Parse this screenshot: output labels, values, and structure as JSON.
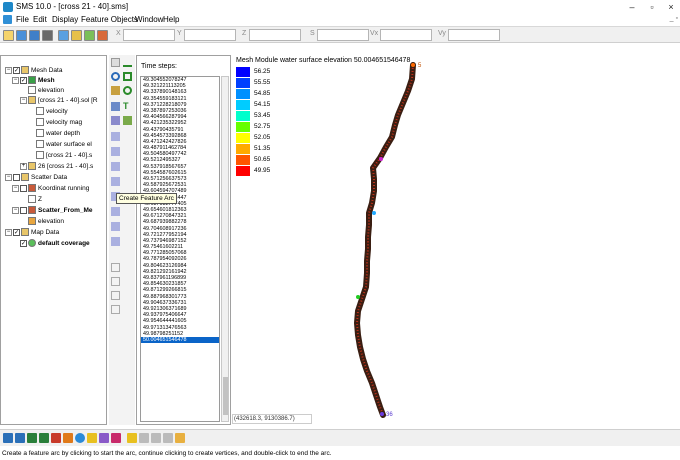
{
  "window": {
    "title": "SMS 10.0 - [cross 21 - 40].sms]",
    "minimize": "–",
    "maximize": "▫",
    "close": "×"
  },
  "menu": [
    "File",
    "Edit",
    "Display",
    "Feature Objects",
    "Window",
    "Help"
  ],
  "toolbar": {
    "coord_labels": [
      "X",
      "Y",
      "Z",
      "S",
      "Vx",
      "Vy"
    ]
  },
  "tree": {
    "mesh_data": "Mesh Data",
    "mesh": "Mesh",
    "elevation": "elevation",
    "solution": "[cross 21 - 40].sol [R",
    "velocity": "velocity",
    "velocity_mag": "velocity mag",
    "water_depth": "water depth",
    "water_surface": "water surface el",
    "cross_dataset": "[cross 21 - 40].s",
    "dataset26": "26 [cross 21 - 40].s",
    "scatter_data": "Scatter Data",
    "koordinat": "Koordinat running",
    "z": "Z",
    "scatter_from": "Scatter_From_Me",
    "scatter_elevation": "elevation",
    "map_data": "Map Data",
    "default_coverage": "default coverage"
  },
  "tooltip": "Create Feature Arc",
  "time_steps": {
    "label": "Time steps:",
    "items": [
      "49.304552078247",
      "49.321221113205",
      "49.337890148163",
      "49.354559183121",
      "49.371228218079",
      "49.387897253036",
      "49.404566287994",
      "49.421235322952",
      "49.43790435791",
      "49.454573392868",
      "49.471242427826",
      "49.487911462784",
      "49.504580497742",
      "49.5212495327",
      "49.537918567657",
      "49.554587602615",
      "49.571256637573",
      "49.587925672531",
      "49.604594707489",
      "49.621263742447",
      "49.637932777405",
      "49.654601812363",
      "49.671270847321",
      "49.687939882278",
      "49.704608917236",
      "49.721277952194",
      "49.737946987152",
      "49.75461602211",
      "49.771285057068",
      "49.787954092026",
      "49.804623126984",
      "49.821292161942",
      "49.837961196899",
      "49.854630231857",
      "49.871299266815",
      "49.887968301773",
      "49.904637336731",
      "49.921306371689",
      "49.937975406647",
      "49.954644441605",
      "49.971313476563",
      "49.98798251152",
      "50.004651546478"
    ],
    "selected_index": 42
  },
  "legend": {
    "title": "Mesh Module water surface elevation 50.004651546478",
    "values": [
      "56.25",
      "55.55",
      "54.85",
      "54.15",
      "53.45",
      "52.75",
      "52.05",
      "51.35",
      "50.65",
      "49.95"
    ],
    "colors": [
      "#0000ff",
      "#0040ff",
      "#0090ff",
      "#00ccff",
      "#00ffcc",
      "#66ff00",
      "#ffff00",
      "#ffaa00",
      "#ff5500",
      "#ff0000"
    ]
  },
  "map_labels": {
    "top": "5",
    "bottom": "36"
  },
  "coordinates": "(432618.3, 9130386.7)",
  "status": "Create a feature arc by clicking to start the arc, continue clicking to create vertices, and double-click to end the arc.",
  "icons": {
    "tree_expand": "⊟",
    "checked": "✓"
  }
}
